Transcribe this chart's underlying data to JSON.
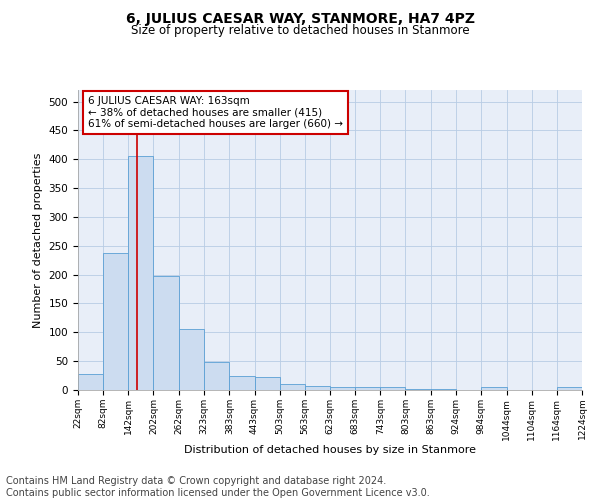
{
  "title": "6, JULIUS CAESAR WAY, STANMORE, HA7 4PZ",
  "subtitle": "Size of property relative to detached houses in Stanmore",
  "xlabel": "Distribution of detached houses by size in Stanmore",
  "ylabel": "Number of detached properties",
  "bar_color": "#ccdcf0",
  "bar_edge_color": "#5a9fd4",
  "grid_color": "#b8cce4",
  "background_color": "#e8eef8",
  "property_line_x": 163,
  "property_line_color": "#cc0000",
  "annotation_text": "6 JULIUS CAESAR WAY: 163sqm\n← 38% of detached houses are smaller (415)\n61% of semi-detached houses are larger (660) →",
  "annotation_box_color": "#ffffff",
  "annotation_border_color": "#cc0000",
  "bin_edges": [
    22,
    82,
    142,
    202,
    262,
    323,
    383,
    443,
    503,
    563,
    623,
    683,
    743,
    803,
    863,
    924,
    984,
    1044,
    1104,
    1164,
    1224
  ],
  "bin_counts": [
    27,
    237,
    406,
    198,
    105,
    49,
    24,
    23,
    11,
    7,
    5,
    5,
    5,
    2,
    1,
    0,
    5,
    0,
    0,
    5
  ],
  "ylim": [
    0,
    520
  ],
  "yticks": [
    0,
    50,
    100,
    150,
    200,
    250,
    300,
    350,
    400,
    450,
    500
  ],
  "footer_text": "Contains HM Land Registry data © Crown copyright and database right 2024.\nContains public sector information licensed under the Open Government Licence v3.0.",
  "footer_fontsize": 7.0
}
